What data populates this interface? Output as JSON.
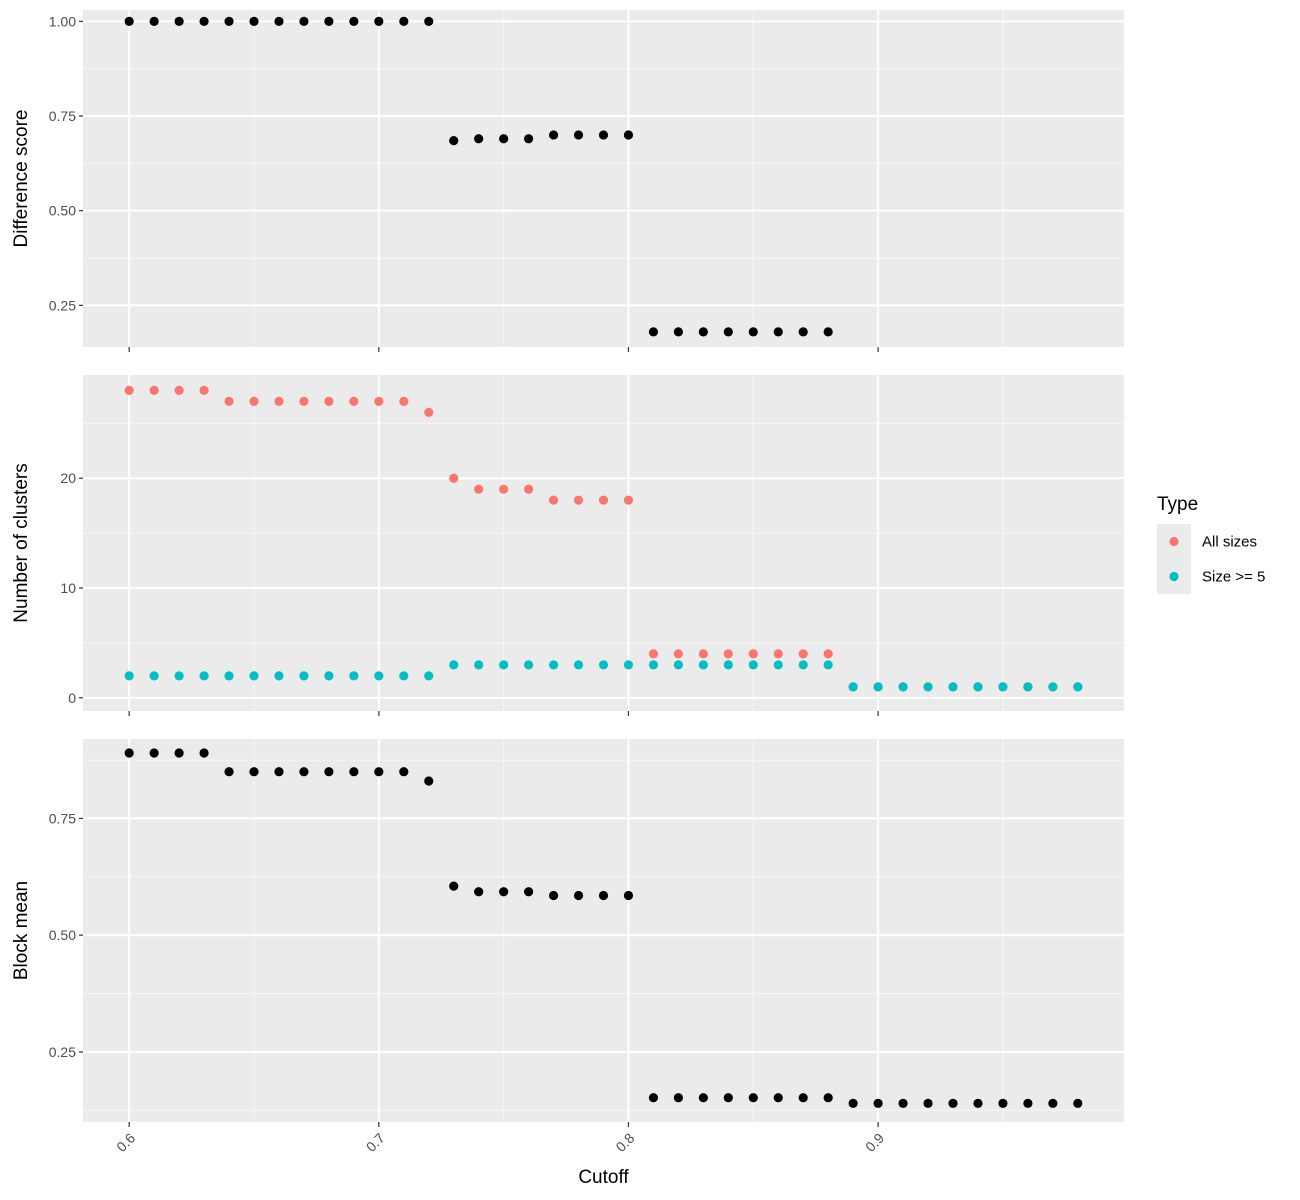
{
  "chart_data": [
    {
      "type": "scatter",
      "panel": "top",
      "ylabel": "Difference score",
      "ylim": [
        0.14,
        1.03
      ],
      "yticks": [
        0.25,
        0.5,
        0.75,
        1.0
      ],
      "ytick_labels": [
        "0.25",
        "0.50",
        "0.75",
        "1.00"
      ],
      "grid": true,
      "series": [
        {
          "color": "#000000",
          "x": [
            0.6,
            0.61,
            0.62,
            0.63,
            0.64,
            0.65,
            0.66,
            0.67,
            0.68,
            0.69,
            0.7,
            0.71,
            0.72,
            0.73,
            0.74,
            0.75,
            0.76,
            0.77,
            0.78,
            0.79,
            0.8,
            0.81,
            0.82,
            0.83,
            0.84,
            0.85,
            0.86,
            0.87,
            0.88
          ],
          "y": [
            1.0,
            1.0,
            1.0,
            1.0,
            1.0,
            1.0,
            1.0,
            1.0,
            1.0,
            1.0,
            1.0,
            1.0,
            1.0,
            0.685,
            0.69,
            0.69,
            0.69,
            0.7,
            0.7,
            0.7,
            0.7,
            0.18,
            0.18,
            0.18,
            0.18,
            0.18,
            0.18,
            0.18,
            0.18
          ]
        }
      ]
    },
    {
      "type": "scatter",
      "panel": "middle",
      "ylabel": "Number of clusters",
      "ylim": [
        -1.2,
        29.4
      ],
      "yticks": [
        0,
        10,
        20
      ],
      "ytick_labels": [
        "0",
        "10",
        "20"
      ],
      "grid": true,
      "series": [
        {
          "name": "All sizes",
          "color": "#F8766D",
          "x": [
            0.6,
            0.61,
            0.62,
            0.63,
            0.64,
            0.65,
            0.66,
            0.67,
            0.68,
            0.69,
            0.7,
            0.71,
            0.72,
            0.73,
            0.74,
            0.75,
            0.76,
            0.77,
            0.78,
            0.79,
            0.8,
            0.81,
            0.82,
            0.83,
            0.84,
            0.85,
            0.86,
            0.87,
            0.88,
            0.89,
            0.9,
            0.91,
            0.92,
            0.93,
            0.94,
            0.95,
            0.96,
            0.97,
            0.98
          ],
          "y": [
            28,
            28,
            28,
            28,
            27,
            27,
            27,
            27,
            27,
            27,
            27,
            27,
            26,
            20,
            19,
            19,
            19,
            18,
            18,
            18,
            18,
            4,
            4,
            4,
            4,
            4,
            4,
            4,
            4,
            1,
            1,
            1,
            1,
            1,
            1,
            1,
            1,
            1,
            1
          ]
        },
        {
          "name": "Size >= 5",
          "color": "#00BFC4",
          "x": [
            0.6,
            0.61,
            0.62,
            0.63,
            0.64,
            0.65,
            0.66,
            0.67,
            0.68,
            0.69,
            0.7,
            0.71,
            0.72,
            0.73,
            0.74,
            0.75,
            0.76,
            0.77,
            0.78,
            0.79,
            0.8,
            0.81,
            0.82,
            0.83,
            0.84,
            0.85,
            0.86,
            0.87,
            0.88,
            0.89,
            0.9,
            0.91,
            0.92,
            0.93,
            0.94,
            0.95,
            0.96,
            0.97,
            0.98
          ],
          "y": [
            2,
            2,
            2,
            2,
            2,
            2,
            2,
            2,
            2,
            2,
            2,
            2,
            2,
            3,
            3,
            3,
            3,
            3,
            3,
            3,
            3,
            3,
            3,
            3,
            3,
            3,
            3,
            3,
            3,
            1,
            1,
            1,
            1,
            1,
            1,
            1,
            1,
            1,
            1
          ]
        }
      ]
    },
    {
      "type": "scatter",
      "panel": "bottom",
      "ylabel": "Block mean",
      "ylim": [
        0.1,
        0.92
      ],
      "yticks": [
        0.25,
        0.5,
        0.75
      ],
      "ytick_labels": [
        "0.25",
        "0.50",
        "0.75"
      ],
      "grid": true,
      "series": [
        {
          "color": "#000000",
          "x": [
            0.6,
            0.61,
            0.62,
            0.63,
            0.64,
            0.65,
            0.66,
            0.67,
            0.68,
            0.69,
            0.7,
            0.71,
            0.72,
            0.73,
            0.74,
            0.75,
            0.76,
            0.77,
            0.78,
            0.79,
            0.8,
            0.81,
            0.82,
            0.83,
            0.84,
            0.85,
            0.86,
            0.87,
            0.88,
            0.89,
            0.9,
            0.91,
            0.92,
            0.93,
            0.94,
            0.95,
            0.96,
            0.97,
            0.98
          ],
          "y": [
            0.89,
            0.89,
            0.89,
            0.89,
            0.85,
            0.85,
            0.85,
            0.85,
            0.85,
            0.85,
            0.85,
            0.85,
            0.83,
            0.605,
            0.593,
            0.593,
            0.593,
            0.585,
            0.585,
            0.585,
            0.585,
            0.152,
            0.152,
            0.152,
            0.152,
            0.152,
            0.152,
            0.152,
            0.152,
            0.14,
            0.14,
            0.14,
            0.14,
            0.14,
            0.14,
            0.14,
            0.14,
            0.14,
            0.14
          ]
        }
      ]
    }
  ],
  "x_axis": {
    "label": "Cutoff",
    "xlim": [
      0.5815,
      0.9985
    ],
    "ticks": [
      0.6,
      0.7,
      0.8,
      0.9
    ],
    "tick_labels": [
      "0.6",
      "0.7",
      "0.8",
      "0.9"
    ],
    "tick_label_rotation": -45
  },
  "legend": {
    "title": "Type",
    "position": "right",
    "items": [
      {
        "label": "All sizes",
        "color": "#F8766D"
      },
      {
        "label": "Size >= 5",
        "color": "#00BFC4"
      }
    ]
  },
  "colors": {
    "panel_background": "#EBEBEB",
    "grid_major": "#FFFFFF",
    "grid_minor": "#F5F5F5",
    "point_default": "#000000"
  }
}
